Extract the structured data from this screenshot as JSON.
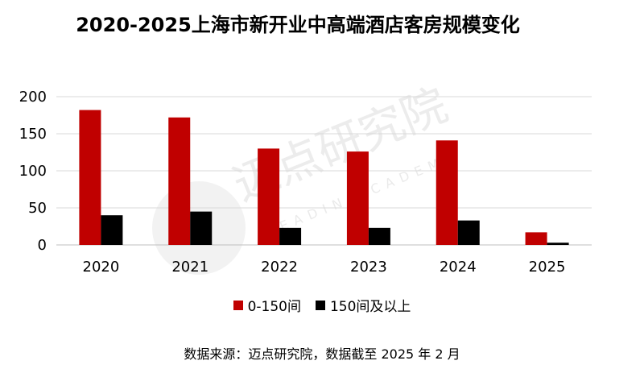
{
  "chart_data": {
    "type": "bar",
    "title": "2020-2025上海市新开业中高端酒店客房规模变化",
    "categories": [
      "2020",
      "2021",
      "2022",
      "2023",
      "2024",
      "2025"
    ],
    "series": [
      {
        "name": "0-150间",
        "color": "#C00000",
        "values": [
          182,
          172,
          130,
          126,
          141,
          17
        ]
      },
      {
        "name": "150间及以上",
        "color": "#000000",
        "values": [
          40,
          45,
          23,
          23,
          33,
          3
        ]
      }
    ],
    "yticks": [
      "0",
      "50",
      "100",
      "150",
      "200"
    ],
    "ylim": [
      0,
      200
    ],
    "grid": true,
    "legend_position": "bottom"
  },
  "source_note": "数据来源：迈点研究院，数据截至 2025 年 2 月",
  "watermark": {
    "text": "迈点研究院",
    "subtext": "MEADIN ACADEMY"
  }
}
